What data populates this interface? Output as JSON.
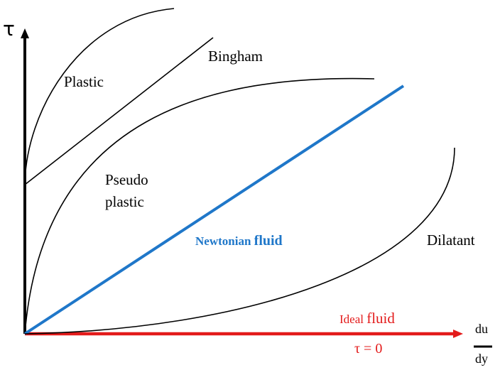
{
  "labels": {
    "y_axis_symbol": "τ",
    "plastic": "Plastic",
    "bingham": "Bingham",
    "pseudo_line1": "Pseudo",
    "pseudo_line2": "plastic",
    "newtonian_prefix": "Newtonian ",
    "newtonian_suffix": "fluid",
    "dilatant": "Dilatant",
    "ideal_prefix": "Ideal ",
    "ideal_suffix": "fluid",
    "tau_zero": "τ = 0",
    "du": "du",
    "dy": "dy"
  },
  "colors": {
    "axis": "#000000",
    "curves": "#000000",
    "newtonian": "#1f77c9",
    "ideal": "#e31b1b"
  }
}
